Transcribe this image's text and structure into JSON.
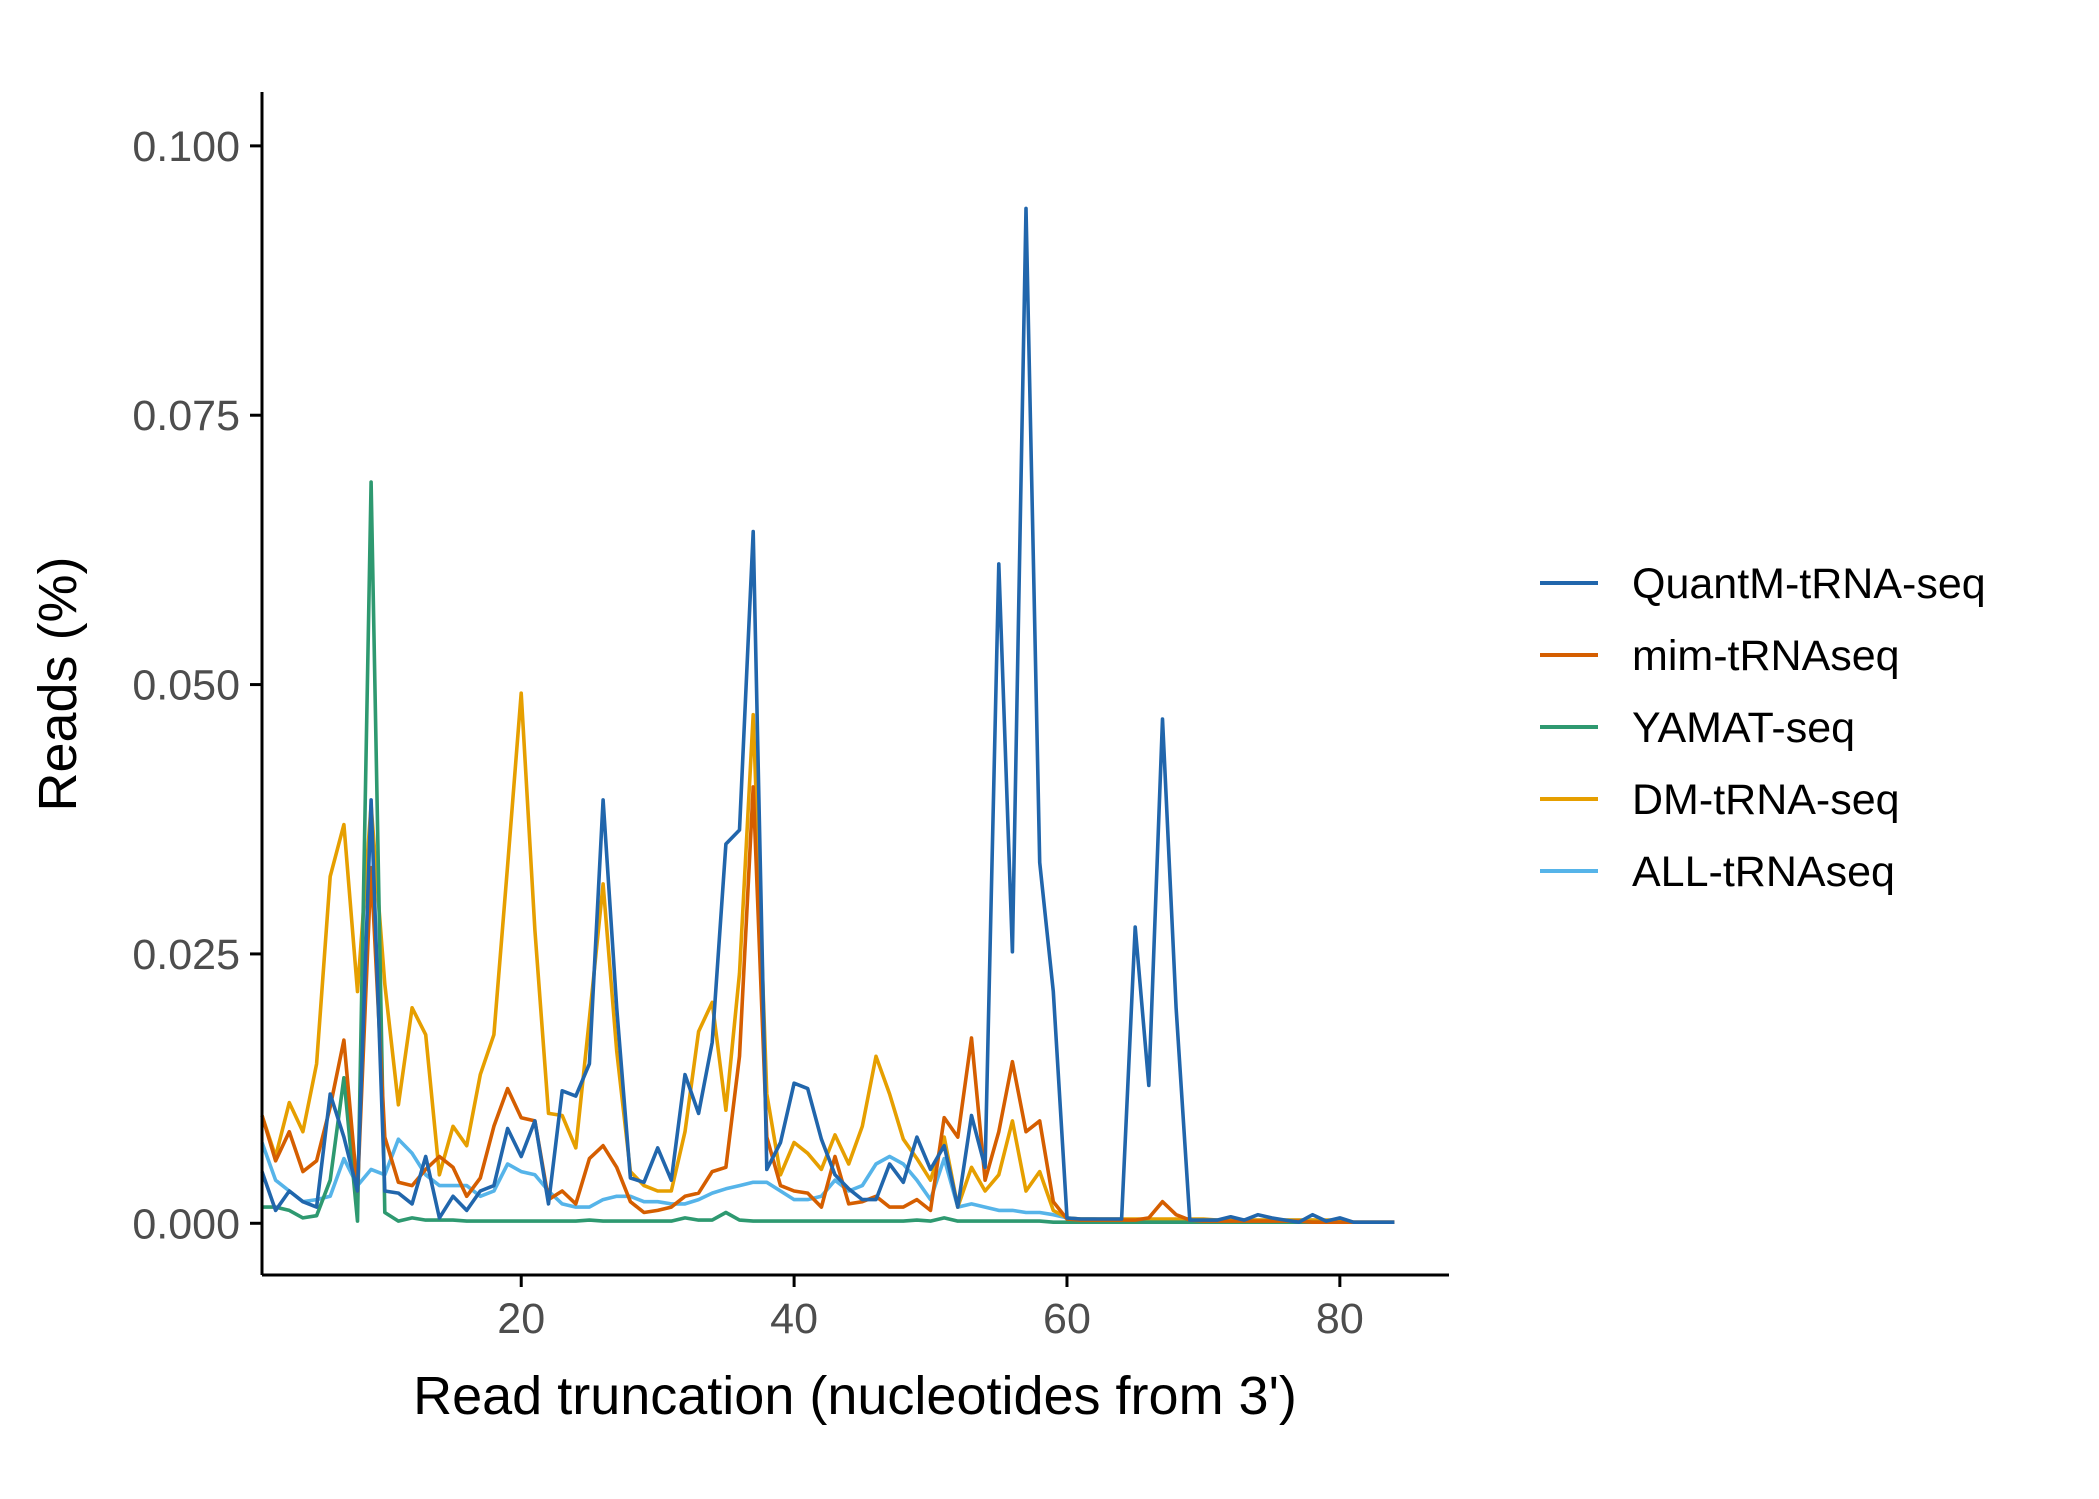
{
  "chart_data": {
    "type": "line",
    "title": "",
    "xlabel": "Read truncation (nucleotides from 3')",
    "ylabel": "Reads (%)",
    "xlim": [
      1,
      88
    ],
    "ylim": [
      -0.0048,
      0.105
    ],
    "x_ticks": [
      {
        "value": 20,
        "label": "20"
      },
      {
        "value": 40,
        "label": "40"
      },
      {
        "value": 60,
        "label": "60"
      },
      {
        "value": 80,
        "label": "80"
      }
    ],
    "y_ticks": [
      {
        "value": 0.0,
        "label": "0.000"
      },
      {
        "value": 0.025,
        "label": "0.025"
      },
      {
        "value": 0.05,
        "label": "0.050"
      },
      {
        "value": 0.075,
        "label": "0.075"
      },
      {
        "value": 0.1,
        "label": "0.100"
      }
    ],
    "grid": false,
    "legend": "right",
    "series": [
      {
        "name": "QuantM-tRNA-seq",
        "color": "#2166AC",
        "x": [
          1,
          2,
          3,
          4,
          5,
          6,
          7,
          8,
          9,
          10,
          11,
          12,
          13,
          14,
          15,
          16,
          17,
          18,
          19,
          20,
          21,
          22,
          23,
          24,
          25,
          26,
          27,
          28,
          29,
          30,
          31,
          32,
          33,
          34,
          35,
          36,
          37,
          38,
          39,
          40,
          41,
          42,
          43,
          44,
          45,
          46,
          47,
          48,
          49,
          50,
          51,
          52,
          53,
          54,
          55,
          56,
          57,
          58,
          59,
          60,
          61,
          62,
          63,
          64,
          65,
          66,
          67,
          68,
          69,
          70,
          71,
          72,
          73,
          74,
          75,
          76,
          77,
          78,
          79,
          80,
          81,
          82,
          83,
          84
        ],
        "values": [
          0.0048,
          0.0012,
          0.003,
          0.002,
          0.0015,
          0.012,
          0.008,
          0.003,
          0.0393,
          0.003,
          0.0028,
          0.0018,
          0.0062,
          0.0005,
          0.0025,
          0.0012,
          0.003,
          0.0035,
          0.0088,
          0.0062,
          0.0095,
          0.0018,
          0.0123,
          0.0118,
          0.0148,
          0.0393,
          0.02,
          0.0042,
          0.0038,
          0.007,
          0.004,
          0.0138,
          0.0102,
          0.0168,
          0.0352,
          0.0365,
          0.0642,
          0.005,
          0.0075,
          0.013,
          0.0125,
          0.0078,
          0.0045,
          0.0032,
          0.0022,
          0.0022,
          0.0055,
          0.0038,
          0.008,
          0.005,
          0.0072,
          0.0015,
          0.01,
          0.0052,
          0.0612,
          0.0252,
          0.0942,
          0.0335,
          0.0215,
          0.0005,
          0.0004,
          0.0004,
          0.0004,
          0.0004,
          0.0275,
          0.0128,
          0.0468,
          0.02,
          0.0003,
          0.0003,
          0.0003,
          0.0006,
          0.0003,
          0.0008,
          0.0005,
          0.0003,
          0.0001,
          0.0008,
          0.0002,
          0.0005,
          0.0001,
          0.0001,
          0.0001,
          0.0001
        ]
      },
      {
        "name": "mim-tRNAseq",
        "color": "#D55E00",
        "x": [
          1,
          2,
          3,
          4,
          5,
          6,
          7,
          8,
          9,
          10,
          11,
          12,
          13,
          14,
          15,
          16,
          17,
          18,
          19,
          20,
          21,
          22,
          23,
          24,
          25,
          26,
          27,
          28,
          29,
          30,
          31,
          32,
          33,
          34,
          35,
          36,
          37,
          38,
          39,
          40,
          41,
          42,
          43,
          44,
          45,
          46,
          47,
          48,
          49,
          50,
          51,
          52,
          53,
          54,
          55,
          56,
          57,
          58,
          59,
          60,
          61,
          62,
          63,
          64,
          65,
          66,
          67,
          68,
          69,
          70,
          71,
          72,
          73,
          74,
          75,
          76,
          77,
          78,
          79,
          80,
          81,
          82,
          83,
          84
        ],
        "values": [
          0.01,
          0.0058,
          0.0085,
          0.0048,
          0.0058,
          0.0108,
          0.017,
          0.003,
          0.033,
          0.008,
          0.0038,
          0.0035,
          0.005,
          0.0062,
          0.0052,
          0.0025,
          0.0042,
          0.009,
          0.0125,
          0.0098,
          0.0095,
          0.0022,
          0.003,
          0.0018,
          0.006,
          0.0072,
          0.0052,
          0.002,
          0.001,
          0.0012,
          0.0015,
          0.0025,
          0.0028,
          0.0048,
          0.0052,
          0.0155,
          0.0405,
          0.008,
          0.0035,
          0.003,
          0.0028,
          0.0015,
          0.0062,
          0.0018,
          0.002,
          0.0025,
          0.0015,
          0.0015,
          0.0022,
          0.0012,
          0.0098,
          0.008,
          0.0172,
          0.004,
          0.0085,
          0.015,
          0.0085,
          0.0095,
          0.002,
          0.0004,
          0.0003,
          0.0003,
          0.0003,
          0.0003,
          0.0003,
          0.0005,
          0.002,
          0.0008,
          0.0003,
          0.0002,
          0.0002,
          0.0002,
          0.0002,
          0.0002,
          0.0002,
          0.0002,
          0.0002,
          0.0001,
          0.0001,
          0.0001,
          0.0001,
          0.0001,
          0.0001,
          0.0001
        ]
      },
      {
        "name": "YAMAT-seq",
        "color": "#2E9970",
        "x": [
          1,
          2,
          3,
          4,
          5,
          6,
          7,
          8,
          9,
          10,
          11,
          12,
          13,
          14,
          15,
          16,
          17,
          18,
          19,
          20,
          21,
          22,
          23,
          24,
          25,
          26,
          27,
          28,
          29,
          30,
          31,
          32,
          33,
          34,
          35,
          36,
          37,
          38,
          39,
          40,
          41,
          42,
          43,
          44,
          45,
          46,
          47,
          48,
          49,
          50,
          51,
          52,
          53,
          54,
          55,
          56,
          57,
          58,
          59,
          60,
          61,
          62,
          63,
          64,
          65,
          66,
          67,
          68,
          69,
          70,
          71,
          72,
          73,
          74,
          75,
          76,
          77,
          78,
          79,
          80
        ],
        "values": [
          0.0015,
          0.0015,
          0.0012,
          0.0005,
          0.0007,
          0.004,
          0.0135,
          0.0002,
          0.0688,
          0.001,
          0.0002,
          0.0005,
          0.0003,
          0.0003,
          0.0003,
          0.0002,
          0.0002,
          0.0002,
          0.0002,
          0.0002,
          0.0002,
          0.0002,
          0.0002,
          0.0002,
          0.0003,
          0.0002,
          0.0002,
          0.0002,
          0.0002,
          0.0002,
          0.0002,
          0.0005,
          0.0003,
          0.0003,
          0.001,
          0.0003,
          0.0002,
          0.0002,
          0.0002,
          0.0002,
          0.0002,
          0.0002,
          0.0002,
          0.0002,
          0.0002,
          0.0002,
          0.0002,
          0.0002,
          0.0003,
          0.0002,
          0.0005,
          0.0002,
          0.0002,
          0.0002,
          0.0002,
          0.0002,
          0.0002,
          0.0002,
          0.0001,
          0.0001,
          0.0001,
          0.0001,
          0.0001,
          0.0001,
          0.0001,
          0.0001,
          0.0001,
          0.0001,
          0.0001,
          0.0001,
          0.0001,
          0.0001,
          0.0001,
          0.0001,
          0.0001,
          0.0001,
          0.0001,
          0.0001,
          0.0001,
          0.0001
        ]
      },
      {
        "name": "DM-tRNA-seq",
        "color": "#E69F00",
        "x": [
          1,
          2,
          3,
          4,
          5,
          6,
          7,
          8,
          9,
          10,
          11,
          12,
          13,
          14,
          15,
          16,
          17,
          18,
          19,
          20,
          21,
          22,
          23,
          24,
          25,
          26,
          27,
          28,
          29,
          30,
          31,
          32,
          33,
          34,
          35,
          36,
          37,
          38,
          39,
          40,
          41,
          42,
          43,
          44,
          45,
          46,
          47,
          48,
          49,
          50,
          51,
          52,
          53,
          54,
          55,
          56,
          57,
          58,
          59,
          60,
          61,
          62,
          63,
          64,
          65,
          66,
          67,
          68,
          69,
          70,
          71,
          72,
          73,
          74,
          75,
          76,
          77,
          78,
          79,
          80,
          81,
          82,
          83,
          84
        ],
        "values": [
          0.01,
          0.0062,
          0.0112,
          0.0085,
          0.0148,
          0.0322,
          0.037,
          0.0215,
          0.0388,
          0.0222,
          0.011,
          0.02,
          0.0175,
          0.0045,
          0.009,
          0.0072,
          0.0138,
          0.0175,
          0.0332,
          0.0492,
          0.0272,
          0.0102,
          0.01,
          0.007,
          0.019,
          0.0315,
          0.016,
          0.0048,
          0.0035,
          0.003,
          0.003,
          0.0085,
          0.0178,
          0.0205,
          0.0105,
          0.0232,
          0.0472,
          0.012,
          0.0045,
          0.0075,
          0.0065,
          0.005,
          0.0082,
          0.0055,
          0.009,
          0.0155,
          0.012,
          0.0078,
          0.006,
          0.004,
          0.008,
          0.0015,
          0.0052,
          0.003,
          0.0045,
          0.0095,
          0.003,
          0.0048,
          0.0012,
          0.0005,
          0.0004,
          0.0004,
          0.0004,
          0.0004,
          0.0004,
          0.0004,
          0.0004,
          0.0004,
          0.0004,
          0.0004,
          0.0003,
          0.0003,
          0.0003,
          0.0003,
          0.0003,
          0.0003,
          0.0003,
          0.0003,
          0.0003,
          0.0003,
          0.0001,
          0.0001,
          0.0001,
          0.0001
        ]
      },
      {
        "name": "ALL-tRNAseq",
        "color": "#56B4E9",
        "x": [
          1,
          2,
          3,
          4,
          5,
          6,
          7,
          8,
          9,
          10,
          11,
          12,
          13,
          14,
          15,
          16,
          17,
          18,
          19,
          20,
          21,
          22,
          23,
          24,
          25,
          26,
          27,
          28,
          29,
          30,
          31,
          32,
          33,
          34,
          35,
          36,
          37,
          38,
          39,
          40,
          41,
          42,
          43,
          44,
          45,
          46,
          47,
          48,
          49,
          50,
          51,
          52,
          53,
          54,
          55,
          56,
          57,
          58,
          59,
          60,
          61,
          62,
          63,
          64,
          65,
          66,
          67,
          68,
          69,
          70,
          71,
          72,
          73,
          74,
          75,
          76,
          77,
          78,
          79,
          80
        ],
        "values": [
          0.0075,
          0.004,
          0.003,
          0.002,
          0.0022,
          0.0025,
          0.006,
          0.0035,
          0.005,
          0.0045,
          0.0078,
          0.0065,
          0.0045,
          0.0035,
          0.0035,
          0.0035,
          0.0025,
          0.003,
          0.0055,
          0.0048,
          0.0045,
          0.003,
          0.0018,
          0.0015,
          0.0015,
          0.0022,
          0.0025,
          0.0025,
          0.002,
          0.002,
          0.0018,
          0.0018,
          0.0022,
          0.0028,
          0.0032,
          0.0035,
          0.0038,
          0.0038,
          0.003,
          0.0022,
          0.0022,
          0.0025,
          0.004,
          0.003,
          0.0035,
          0.0055,
          0.0062,
          0.0055,
          0.004,
          0.0022,
          0.006,
          0.0015,
          0.0018,
          0.0015,
          0.0012,
          0.0012,
          0.001,
          0.001,
          0.0008,
          0.0005,
          0.0004,
          0.0004,
          0.0003,
          0.0003,
          0.0003,
          0.0003,
          0.0003,
          0.0003,
          0.0003,
          0.0003,
          0.0003,
          0.0003,
          0.0003,
          0.0003,
          0.0003,
          0.0003,
          0.0003,
          0.0003,
          0.0002,
          0.0002
        ]
      }
    ]
  }
}
